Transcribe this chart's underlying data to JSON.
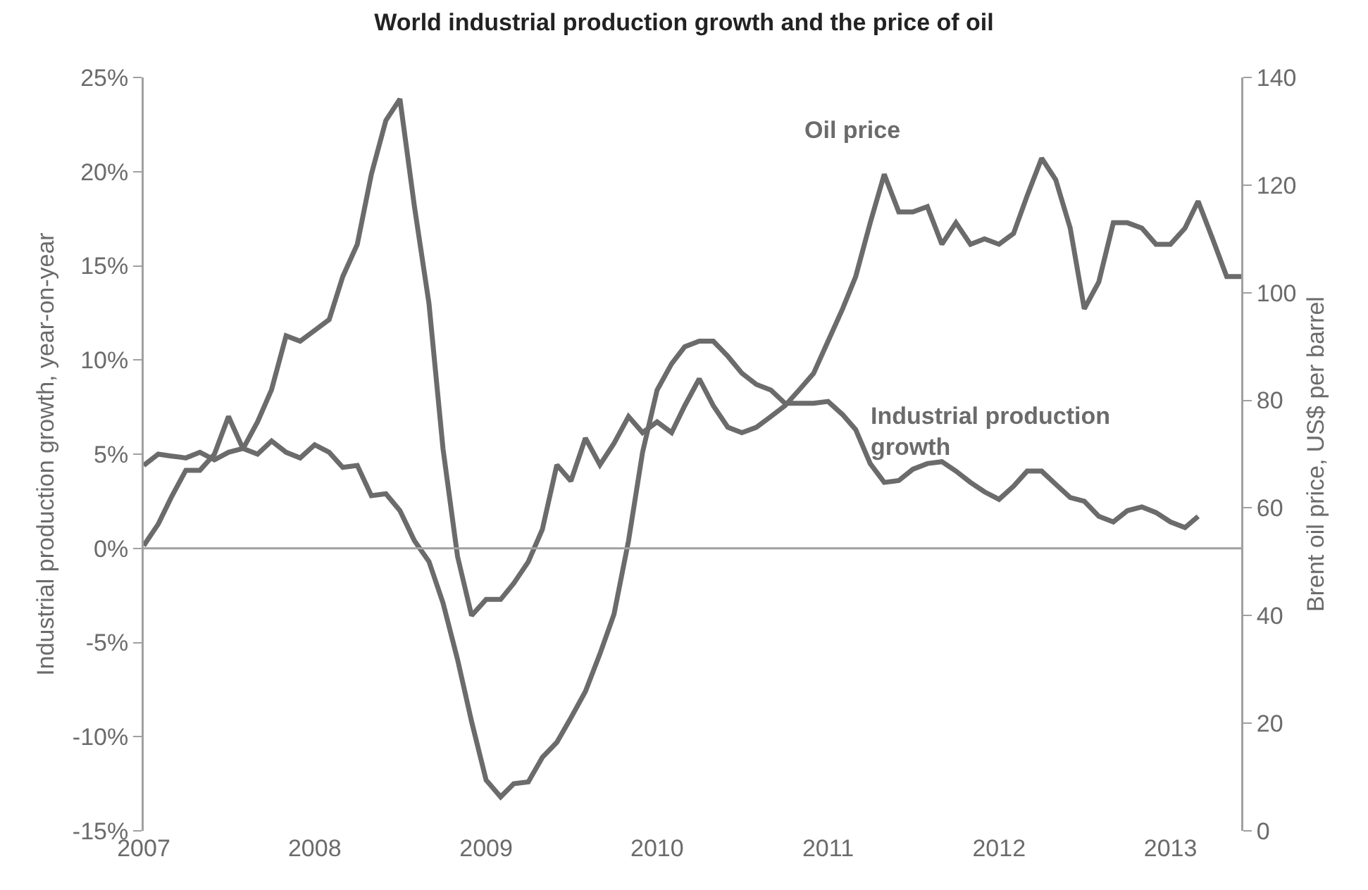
{
  "chart_data": {
    "type": "line",
    "title": "World industrial production growth and the price of oil",
    "ylabel": "Industrial production growth, year-on-year",
    "y2label": "Brent oil price, US$ per barrel",
    "series": [
      {
        "name": "Industrial production growth",
        "color": "#6b6b6b",
        "x": [
          "2007-01",
          "2007-02",
          "2007-03",
          "2007-04",
          "2007-05",
          "2007-06",
          "2007-07",
          "2007-08",
          "2007-09",
          "2007-10",
          "2007-11",
          "2007-12",
          "2008-01",
          "2008-02",
          "2008-03",
          "2008-04",
          "2008-05",
          "2008-06",
          "2008-07",
          "2008-08",
          "2008-09",
          "2008-10",
          "2008-11",
          "2008-12",
          "2009-01",
          "2009-02",
          "2009-03",
          "2009-04",
          "2009-05",
          "2009-06",
          "2009-07",
          "2009-08",
          "2009-09",
          "2009-10",
          "2009-11",
          "2009-12",
          "2010-01",
          "2010-02",
          "2010-03",
          "2010-04",
          "2010-05",
          "2010-06",
          "2010-07",
          "2010-08",
          "2010-09",
          "2010-10",
          "2010-11",
          "2010-12",
          "2011-01",
          "2011-02",
          "2011-03",
          "2011-04",
          "2011-05",
          "2011-06",
          "2011-07",
          "2011-08",
          "2011-09",
          "2011-10",
          "2011-11",
          "2011-12",
          "2012-01",
          "2012-02",
          "2012-03",
          "2012-04",
          "2012-05",
          "2012-06",
          "2012-07",
          "2012-08",
          "2012-09",
          "2012-10",
          "2012-11",
          "2012-12",
          "2013-01",
          "2013-02",
          "2013-03"
        ],
        "values": [
          4.4,
          5.0,
          4.9,
          4.8,
          5.1,
          4.7,
          5.1,
          5.3,
          5.0,
          5.7,
          5.1,
          4.8,
          5.5,
          5.1,
          4.3,
          4.4,
          2.8,
          2.9,
          2.0,
          0.4,
          -0.7,
          -2.9,
          -5.9,
          -9.2,
          -12.3,
          -13.2,
          -12.5,
          -12.4,
          -11.1,
          -10.3,
          -9.0,
          -7.6,
          -5.6,
          -3.5,
          0.4,
          5.1,
          8.4,
          9.8,
          10.7,
          11.0,
          11.0,
          10.2,
          9.3,
          8.7,
          8.4,
          7.7,
          7.7,
          7.7,
          7.8,
          7.1,
          6.3,
          4.5,
          3.5,
          3.6,
          4.2,
          4.5,
          4.6,
          4.1,
          3.5,
          3.0,
          2.6,
          3.3,
          4.1,
          4.1,
          3.4,
          2.7,
          2.5,
          1.7,
          1.4,
          2.0,
          2.2,
          1.9,
          1.4,
          1.1,
          1.7
        ]
      },
      {
        "name": "Oil price",
        "color": "#6b6b6b",
        "axis": "y2",
        "x": [
          "2007-01",
          "2007-02",
          "2007-03",
          "2007-04",
          "2007-05",
          "2007-06",
          "2007-07",
          "2007-08",
          "2007-09",
          "2007-10",
          "2007-11",
          "2007-12",
          "2008-01",
          "2008-02",
          "2008-03",
          "2008-04",
          "2008-05",
          "2008-06",
          "2008-07",
          "2008-08",
          "2008-09",
          "2008-10",
          "2008-11",
          "2008-12",
          "2009-01",
          "2009-02",
          "2009-03",
          "2009-04",
          "2009-05",
          "2009-06",
          "2009-07",
          "2009-08",
          "2009-09",
          "2009-10",
          "2009-11",
          "2009-12",
          "2010-01",
          "2010-02",
          "2010-03",
          "2010-04",
          "2010-05",
          "2010-06",
          "2010-07",
          "2010-08",
          "2010-09",
          "2010-10",
          "2010-11",
          "2010-12",
          "2011-01",
          "2011-02",
          "2011-03",
          "2011-04",
          "2011-05",
          "2011-06",
          "2011-07",
          "2011-08",
          "2011-09",
          "2011-10",
          "2011-11",
          "2011-12",
          "2012-01",
          "2012-02",
          "2012-03",
          "2012-04",
          "2012-05",
          "2012-06",
          "2012-07",
          "2012-08",
          "2012-09",
          "2012-10",
          "2012-11",
          "2012-12",
          "2013-01",
          "2013-02",
          "2013-03",
          "2013-04",
          "2013-05",
          "2013-06"
        ],
        "values": [
          53,
          57,
          62,
          67,
          67,
          70,
          77,
          71,
          76,
          82,
          92,
          91,
          93,
          95,
          103,
          109,
          122,
          132,
          136,
          116,
          98,
          71,
          51,
          40,
          43,
          43,
          46,
          50,
          56,
          68,
          65,
          73,
          68,
          72,
          77,
          74,
          76,
          74,
          79,
          84,
          79,
          75,
          74,
          75,
          77,
          79,
          82,
          85,
          91,
          97,
          103,
          113,
          122,
          115,
          115,
          116,
          109,
          113,
          109,
          110,
          109,
          111,
          118,
          125,
          121,
          112,
          97,
          102,
          113,
          113,
          112,
          109,
          109,
          112,
          117,
          110,
          103,
          103
        ]
      }
    ],
    "xlim": [
      "2007-01",
      "2013-06"
    ],
    "xticks": [
      "2007",
      "2008",
      "2009",
      "2010",
      "2011",
      "2012",
      "2013"
    ],
    "ylim": [
      -15,
      25
    ],
    "yticks": [
      {
        "value": -15,
        "label": "-15%"
      },
      {
        "value": -10,
        "label": "-10%"
      },
      {
        "value": -5,
        "label": "-5%"
      },
      {
        "value": 0,
        "label": "0%"
      },
      {
        "value": 5,
        "label": "5%"
      },
      {
        "value": 10,
        "label": "10%"
      },
      {
        "value": 15,
        "label": "15%"
      },
      {
        "value": 20,
        "label": "20%"
      },
      {
        "value": 25,
        "label": "25%"
      }
    ],
    "y2lim": [
      0,
      140
    ],
    "y2ticks": [
      0,
      20,
      40,
      60,
      80,
      100,
      120,
      140
    ],
    "ref_lines": [
      {
        "axis": "y",
        "value": 0,
        "color": "#a0a0a0"
      }
    ],
    "legend": false,
    "grid": false,
    "marker": "none",
    "line_style": "solid"
  }
}
